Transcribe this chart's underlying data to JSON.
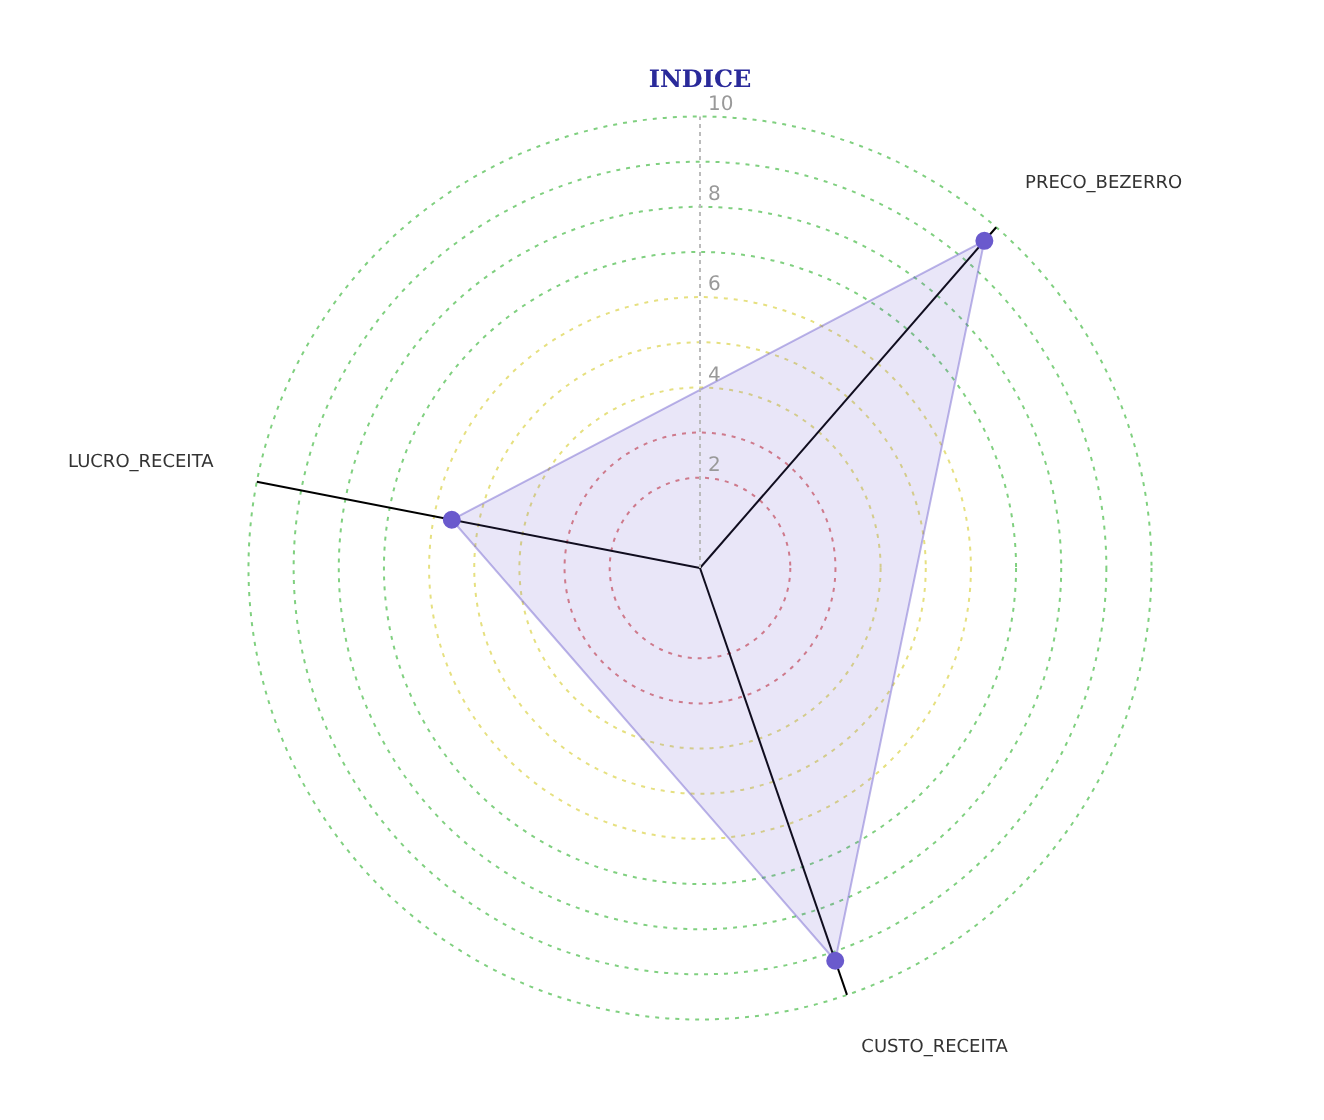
{
  "chart_data": {
    "type": "radar",
    "ylabel": "INDICE",
    "categories": [
      "PRECO_BEZERRO",
      "CUSTO_RECEITA",
      "LUCRO_RECEITA"
    ],
    "series": [
      {
        "color": "#6a5acd",
        "values": [
          9.6,
          9.2,
          5.6
        ]
      }
    ],
    "ylim": [
      0,
      10
    ],
    "yticks": [
      2,
      4,
      6,
      8,
      10
    ],
    "grid": true,
    "legend": false,
    "marker": "circle"
  }
}
